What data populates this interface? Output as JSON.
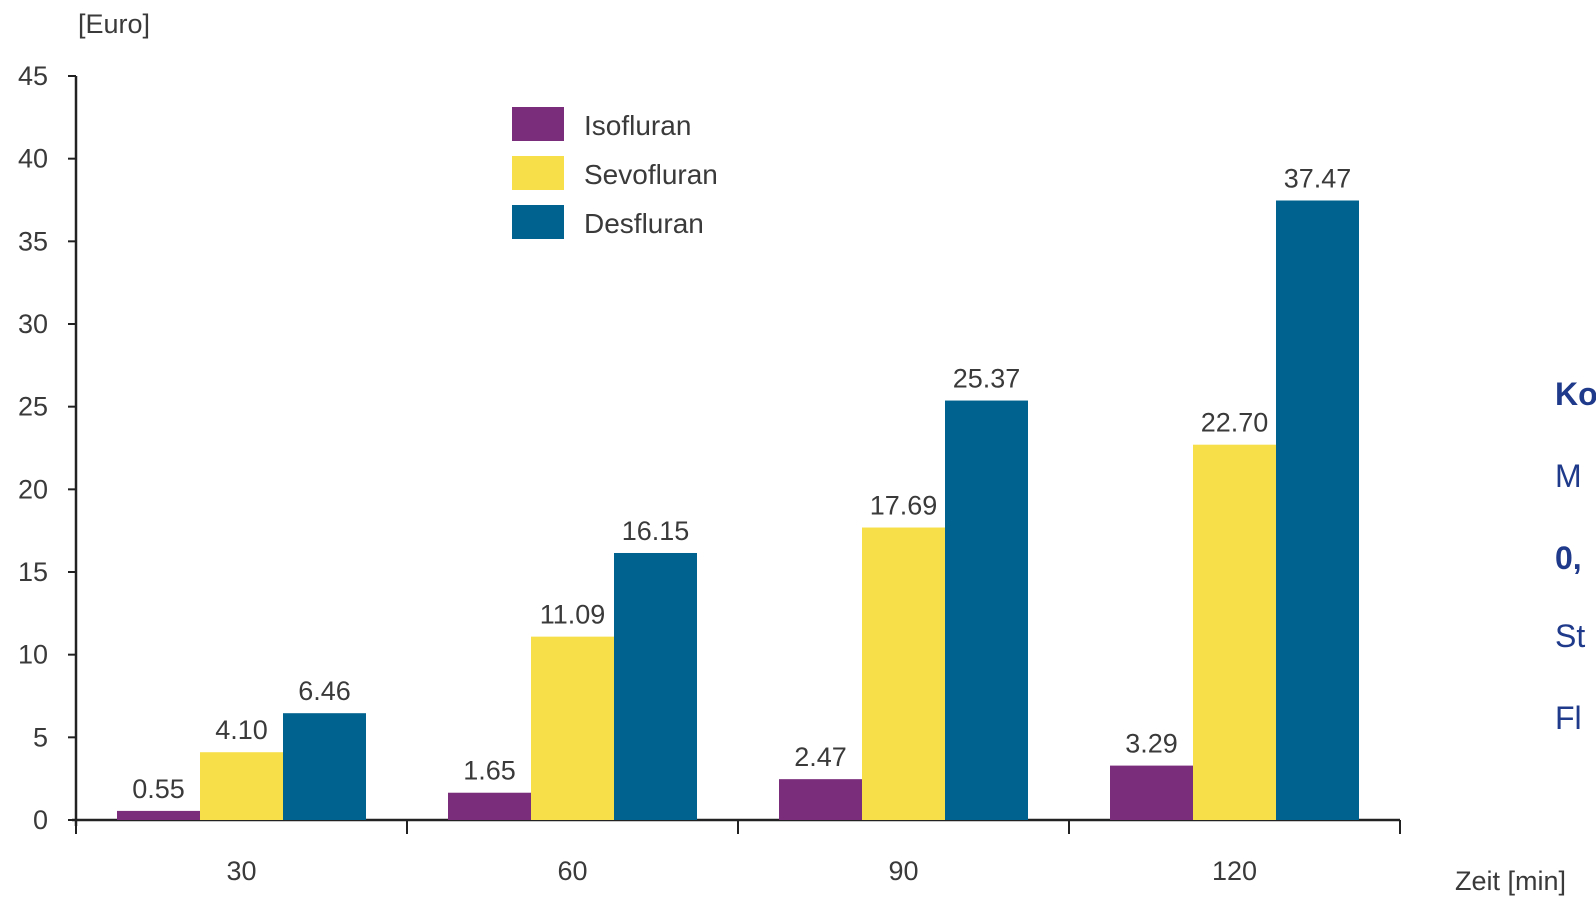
{
  "colors": {
    "isofluran": "#7a2d7a",
    "sevofluran": "#f7df4a",
    "desfluran": "#00628f",
    "axis": "#222222",
    "side_text": "#1f3a8a"
  },
  "side_text": [
    {
      "text": "Ko",
      "bold": true
    },
    {
      "text": "M",
      "bold": false
    },
    {
      "text": "0,",
      "bold": true
    },
    {
      "text": "St",
      "bold": false
    },
    {
      "text": "Fl",
      "bold": false
    }
  ],
  "chart_data": {
    "type": "bar",
    "ylabel": "[Euro]",
    "xlabel": "Zeit [min]",
    "categories": [
      "30",
      "60",
      "90",
      "120"
    ],
    "ylim": [
      0,
      45
    ],
    "yticks": [
      0,
      5,
      10,
      15,
      20,
      25,
      30,
      35,
      40,
      45
    ],
    "legend_position": "top-center",
    "grid": false,
    "series": [
      {
        "name": "Isofluran",
        "color": "#7a2d7a",
        "values": [
          0.55,
          1.65,
          2.47,
          3.29
        ],
        "labels": [
          "0.55",
          "1.65",
          "2.47",
          "3.29"
        ]
      },
      {
        "name": "Sevofluran",
        "color": "#f7df4a",
        "values": [
          4.1,
          11.09,
          17.69,
          22.7
        ],
        "labels": [
          "4.10",
          "11.09",
          "17.69",
          "22.70"
        ]
      },
      {
        "name": "Desfluran",
        "color": "#00628f",
        "values": [
          6.46,
          16.15,
          25.37,
          37.47
        ],
        "labels": [
          "6.46",
          "16.15",
          "25.37",
          "37.47"
        ]
      }
    ]
  }
}
